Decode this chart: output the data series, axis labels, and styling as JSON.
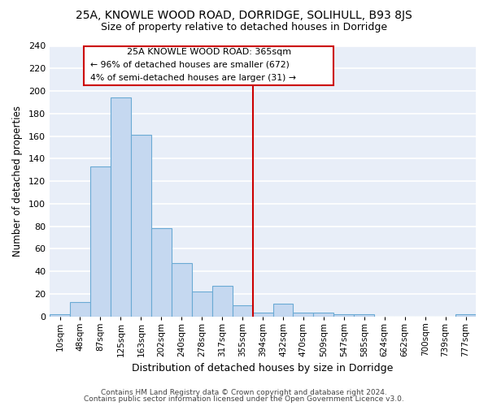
{
  "title": "25A, KNOWLE WOOD ROAD, DORRIDGE, SOLIHULL, B93 8JS",
  "subtitle": "Size of property relative to detached houses in Dorridge",
  "xlabel": "Distribution of detached houses by size in Dorridge",
  "ylabel": "Number of detached properties",
  "bar_labels": [
    "10sqm",
    "48sqm",
    "87sqm",
    "125sqm",
    "163sqm",
    "202sqm",
    "240sqm",
    "278sqm",
    "317sqm",
    "355sqm",
    "394sqm",
    "432sqm",
    "470sqm",
    "509sqm",
    "547sqm",
    "585sqm",
    "624sqm",
    "662sqm",
    "700sqm",
    "739sqm",
    "777sqm"
  ],
  "bar_values": [
    2,
    13,
    133,
    194,
    161,
    78,
    47,
    22,
    27,
    10,
    3,
    11,
    3,
    3,
    2,
    2,
    0,
    0,
    0,
    0,
    2
  ],
  "bar_color": "#c5d8f0",
  "bar_edgecolor": "#6aaad4",
  "background_color": "#ffffff",
  "ax_background_color": "#e8eef8",
  "grid_color": "#ffffff",
  "vline_x": 9.5,
  "vline_color": "#cc0000",
  "annotation_title": "25A KNOWLE WOOD ROAD: 365sqm",
  "annotation_line1": "← 96% of detached houses are smaller (672)",
  "annotation_line2": "4% of semi-detached houses are larger (31) →",
  "annotation_box_edgecolor": "#cc0000",
  "ylim": [
    0,
    240
  ],
  "yticks": [
    0,
    20,
    40,
    60,
    80,
    100,
    120,
    140,
    160,
    180,
    200,
    220,
    240
  ],
  "footer_line1": "Contains HM Land Registry data © Crown copyright and database right 2024.",
  "footer_line2": "Contains public sector information licensed under the Open Government Licence v3.0."
}
